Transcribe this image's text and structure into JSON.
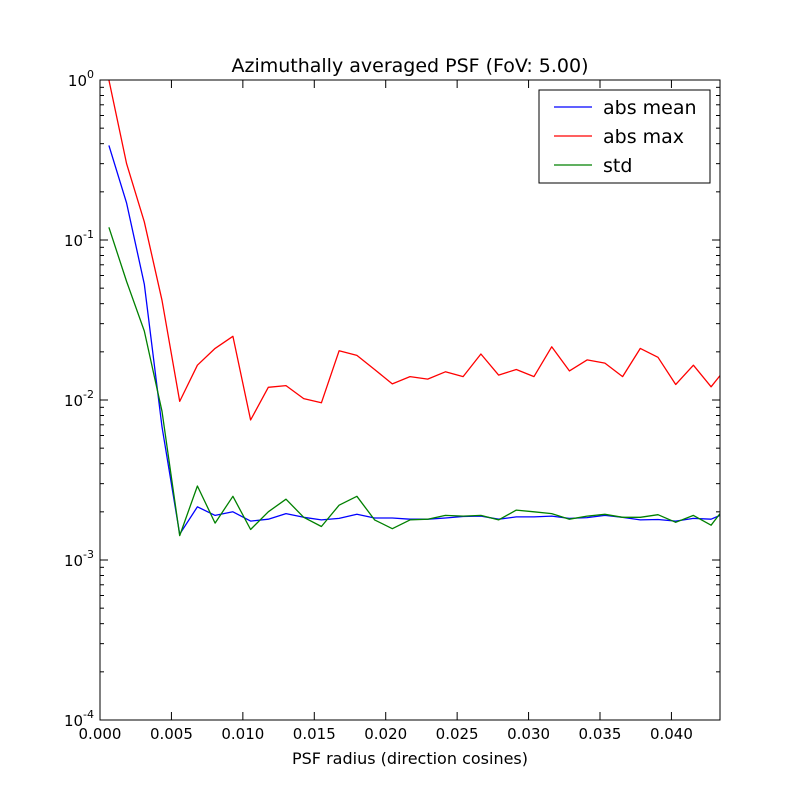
{
  "chart_data": {
    "type": "line",
    "title": "Azimuthally averaged PSF (FoV: 5.00)",
    "xlabel": "PSF radius (direction cosines)",
    "ylabel": "",
    "xlim": [
      0.0,
      0.0434
    ],
    "ylim": [
      0.0001,
      1.0
    ],
    "yscale": "log",
    "xticks": [
      0.0,
      0.005,
      0.01,
      0.015,
      0.02,
      0.025,
      0.03,
      0.035,
      0.04
    ],
    "xtick_labels": [
      "0.000",
      "0.005",
      "0.010",
      "0.015",
      "0.020",
      "0.025",
      "0.030",
      "0.035",
      "0.040"
    ],
    "yticks": [
      {
        "value": 1.0,
        "base": "10",
        "exp": "0"
      },
      {
        "value": 0.1,
        "base": "10",
        "exp": "-1"
      },
      {
        "value": 0.01,
        "base": "10",
        "exp": "-2"
      },
      {
        "value": 0.001,
        "base": "10",
        "exp": "-3"
      },
      {
        "value": 0.0001,
        "base": "10",
        "exp": "-4"
      }
    ],
    "grid": false,
    "legend_position": "top-right",
    "x": [
      0.00062,
      0.00186,
      0.0031,
      0.00434,
      0.00558,
      0.00682,
      0.00806,
      0.0093,
      0.01054,
      0.01178,
      0.01302,
      0.01426,
      0.0155,
      0.01674,
      0.01798,
      0.01922,
      0.02046,
      0.0217,
      0.02294,
      0.02418,
      0.02542,
      0.02666,
      0.0279,
      0.02914,
      0.03038,
      0.03162,
      0.03286,
      0.0341,
      0.03534,
      0.03658,
      0.03782,
      0.03906,
      0.0403,
      0.04154,
      0.04278,
      0.0434
    ],
    "series": [
      {
        "name": "abs mean",
        "color": "#0000ff",
        "values": [
          0.39,
          0.17,
          0.053,
          0.0068,
          0.00145,
          0.00215,
          0.0019,
          0.002,
          0.00175,
          0.0018,
          0.00195,
          0.00185,
          0.00178,
          0.00182,
          0.00193,
          0.00183,
          0.00183,
          0.0018,
          0.0018,
          0.00183,
          0.00187,
          0.00188,
          0.0018,
          0.00186,
          0.00186,
          0.00188,
          0.00182,
          0.00184,
          0.0019,
          0.00185,
          0.00178,
          0.00179,
          0.00175,
          0.00182,
          0.0018,
          0.0019
        ]
      },
      {
        "name": "abs max",
        "color": "#ff0000",
        "values": [
          1.0,
          0.3,
          0.13,
          0.042,
          0.0098,
          0.0165,
          0.021,
          0.025,
          0.0075,
          0.012,
          0.0123,
          0.0102,
          0.0096,
          0.0203,
          0.019,
          0.0155,
          0.0126,
          0.014,
          0.0135,
          0.015,
          0.014,
          0.0194,
          0.0143,
          0.0155,
          0.014,
          0.0215,
          0.0152,
          0.0178,
          0.017,
          0.014,
          0.021,
          0.0185,
          0.0125,
          0.0165,
          0.0121,
          0.0142
        ]
      },
      {
        "name": "std",
        "color": "#008000",
        "values": [
          0.12,
          0.055,
          0.027,
          0.0085,
          0.00142,
          0.0029,
          0.0017,
          0.0025,
          0.00155,
          0.002,
          0.0024,
          0.00185,
          0.00162,
          0.0022,
          0.0025,
          0.00178,
          0.00157,
          0.00178,
          0.0018,
          0.0019,
          0.00188,
          0.0019,
          0.00178,
          0.00205,
          0.002,
          0.00195,
          0.0018,
          0.00188,
          0.00193,
          0.00185,
          0.00185,
          0.00192,
          0.00172,
          0.0019,
          0.00165,
          0.00195
        ]
      }
    ]
  }
}
